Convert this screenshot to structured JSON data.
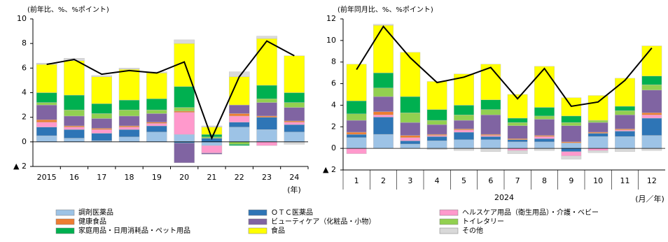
{
  "legend": [
    {
      "name": "調剤医薬品",
      "color": "#9dc3e6"
    },
    {
      "name": "ＯＴＣ医薬品",
      "color": "#2e75b6"
    },
    {
      "name": "ヘルスケア用品（衛生用品）・介護・ベビー",
      "color": "#ff99cc"
    },
    {
      "name": "健康食品",
      "color": "#ed7d31"
    },
    {
      "name": "ビューティケア（化粧品・小物）",
      "color": "#8064a2"
    },
    {
      "name": "トイレタリー",
      "color": "#92d050"
    },
    {
      "name": "家庭用品・日用消耗品・ペット用品",
      "color": "#00b050"
    },
    {
      "name": "食品",
      "color": "#ffff00"
    },
    {
      "name": "その他",
      "color": "#d9d9d9"
    }
  ],
  "chart_data": [
    {
      "type": "bar",
      "stacked": true,
      "axis_label": "(前年比、%、%ポイント)",
      "x_unit": "(年)",
      "categories": [
        "2015",
        "16",
        "17",
        "18",
        "19",
        "20",
        "21",
        "22",
        "23",
        "24"
      ],
      "ylim": [
        -2,
        10
      ],
      "yticks": [
        {
          "value": -2,
          "label": "▲ 2"
        },
        0,
        2,
        4,
        6,
        8,
        10
      ],
      "series": [
        {
          "values": [
            0.5,
            0.3,
            0.1,
            0.4,
            0.8,
            0.6,
            -0.3,
            1.2,
            1.0,
            0.8
          ]
        },
        {
          "values": [
            0.7,
            0.7,
            0.6,
            0.6,
            0.5,
            -0.1,
            0.3,
            0.4,
            1.0,
            0.6
          ]
        },
        {
          "values": [
            0.4,
            0.2,
            0.3,
            0.2,
            0.2,
            1.8,
            -0.6,
            0.5,
            -0.3,
            0.2
          ]
        },
        {
          "values": [
            0.2,
            0.1,
            0.1,
            0.1,
            0.1,
            0.1,
            0,
            0.2,
            0.1,
            0.1
          ]
        },
        {
          "values": [
            1.2,
            0.8,
            0.8,
            0.8,
            0.7,
            -1.6,
            -0.1,
            0.7,
            1.1,
            1.1
          ]
        },
        {
          "values": [
            0.2,
            0.5,
            0.4,
            0.5,
            0.3,
            0.3,
            0.1,
            -0.2,
            0.3,
            0.4
          ]
        },
        {
          "values": [
            0.8,
            1.2,
            0.8,
            0.8,
            0.9,
            1.7,
            0.2,
            -0.1,
            1.1,
            0.8
          ]
        },
        {
          "values": [
            2.3,
            2.8,
            2.2,
            2.5,
            2.1,
            3.5,
            0.6,
            2.3,
            3.8,
            3.0
          ]
        },
        {
          "values": [
            0.1,
            0.2,
            0.1,
            0.1,
            0.1,
            0.3,
            0.1,
            0.4,
            0.2,
            -0.2
          ]
        }
      ],
      "line": {
        "color": "#000000",
        "values": [
          6.3,
          6.7,
          5.5,
          5.8,
          5.6,
          6.5,
          0.3,
          5.3,
          8.2,
          7.0
        ]
      }
    },
    {
      "type": "bar",
      "stacked": true,
      "axis_label": "(前年同月比、%、%ポイント)",
      "x_unit": "(月／年)",
      "period": "2024",
      "categories": [
        "1",
        "2",
        "3",
        "4",
        "5",
        "6",
        "7",
        "8",
        "9",
        "10",
        "11",
        "12"
      ],
      "ylim": [
        -2,
        12
      ],
      "yticks": [
        {
          "value": -2,
          "label": "▲ 2"
        },
        0,
        2,
        4,
        6,
        8,
        10,
        12
      ],
      "series": [
        {
          "values": [
            1.0,
            1.3,
            0.4,
            0.7,
            0.8,
            0.8,
            0.6,
            0.6,
            0.5,
            1.1,
            1.1,
            1.2
          ]
        },
        {
          "values": [
            0.3,
            1.6,
            0.3,
            0.4,
            0.7,
            0.3,
            0.2,
            0.3,
            -0.3,
            0.3,
            0.5,
            1.6
          ]
        },
        {
          "values": [
            -0.5,
            0.2,
            0.3,
            0.1,
            0.2,
            0.1,
            -0.2,
            0.2,
            -0.4,
            -0.2,
            0.1,
            0.3
          ]
        },
        {
          "values": [
            0.2,
            0.3,
            0.2,
            0.1,
            0.1,
            0.1,
            0.1,
            0.1,
            0.1,
            0.1,
            0.1,
            0.2
          ]
        },
        {
          "values": [
            1.1,
            1.4,
            1.2,
            0.9,
            0.8,
            1.8,
            1.2,
            1.5,
            1.5,
            0.9,
            1.3,
            2.1
          ]
        },
        {
          "values": [
            0.6,
            0.8,
            0.9,
            0.4,
            0.5,
            0.5,
            0.3,
            0.3,
            0.3,
            0.2,
            0.4,
            0.5
          ]
        },
        {
          "values": [
            1.2,
            1.4,
            1.5,
            1.0,
            0.9,
            0.9,
            0.4,
            0.8,
            0.6,
            0.0,
            0.4,
            0.8
          ]
        },
        {
          "values": [
            3.4,
            4.4,
            4.1,
            2.6,
            2.9,
            3.3,
            2.2,
            3.8,
            1.7,
            2.3,
            2.6,
            2.8
          ]
        },
        {
          "values": [
            0,
            0.1,
            0,
            -0.1,
            -0.2,
            -0.3,
            -0.3,
            -0.2,
            -0.3,
            -0.2,
            -0.3,
            -0.2
          ]
        }
      ],
      "line": {
        "color": "#000000",
        "values": [
          7.3,
          11.3,
          8.4,
          6.1,
          6.6,
          7.5,
          4.6,
          7.4,
          3.9,
          4.3,
          6.3,
          9.3
        ]
      }
    }
  ]
}
